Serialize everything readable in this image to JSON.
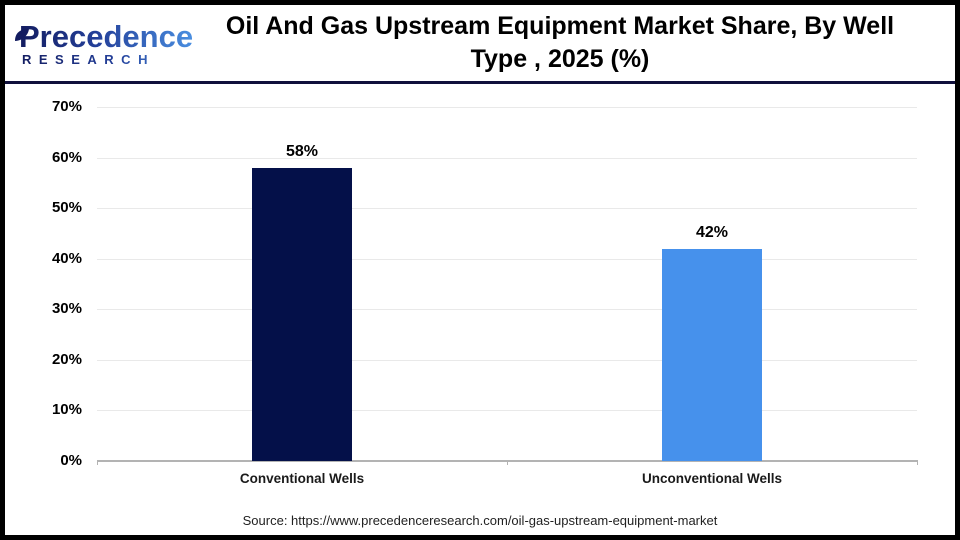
{
  "header": {
    "logo": {
      "brand": "Precedence",
      "brand_sub": "RESEARCH",
      "leaf_color": "#131c60"
    },
    "title_line1": "Oil And Gas Upstream Equipment Market Share, By Well",
    "title_line2": "Type , 2025 (%)"
  },
  "chart_data": {
    "type": "bar",
    "title": "Oil And Gas Upstream Equipment Market Share, By Well Type , 2025 (%)",
    "categories": [
      "Conventional Wells",
      "Unconventional Wells"
    ],
    "values": [
      58,
      42
    ],
    "value_labels": [
      "58%",
      "42%"
    ],
    "bar_colors": [
      "#041049",
      "#4691ec"
    ],
    "xlabel": "",
    "ylabel": "",
    "ylim": [
      0,
      70
    ],
    "ytick_step": 10,
    "ytick_labels": [
      "0%",
      "10%",
      "20%",
      "30%",
      "40%",
      "50%",
      "60%",
      "70%"
    ],
    "grid": true,
    "legend": "none",
    "gridline_color": "#e9e9e9",
    "axis_color": "#b3b3b3"
  },
  "footer": {
    "source": "Source: https://www.precedenceresearch.com/oil-gas-upstream-equipment-market"
  }
}
